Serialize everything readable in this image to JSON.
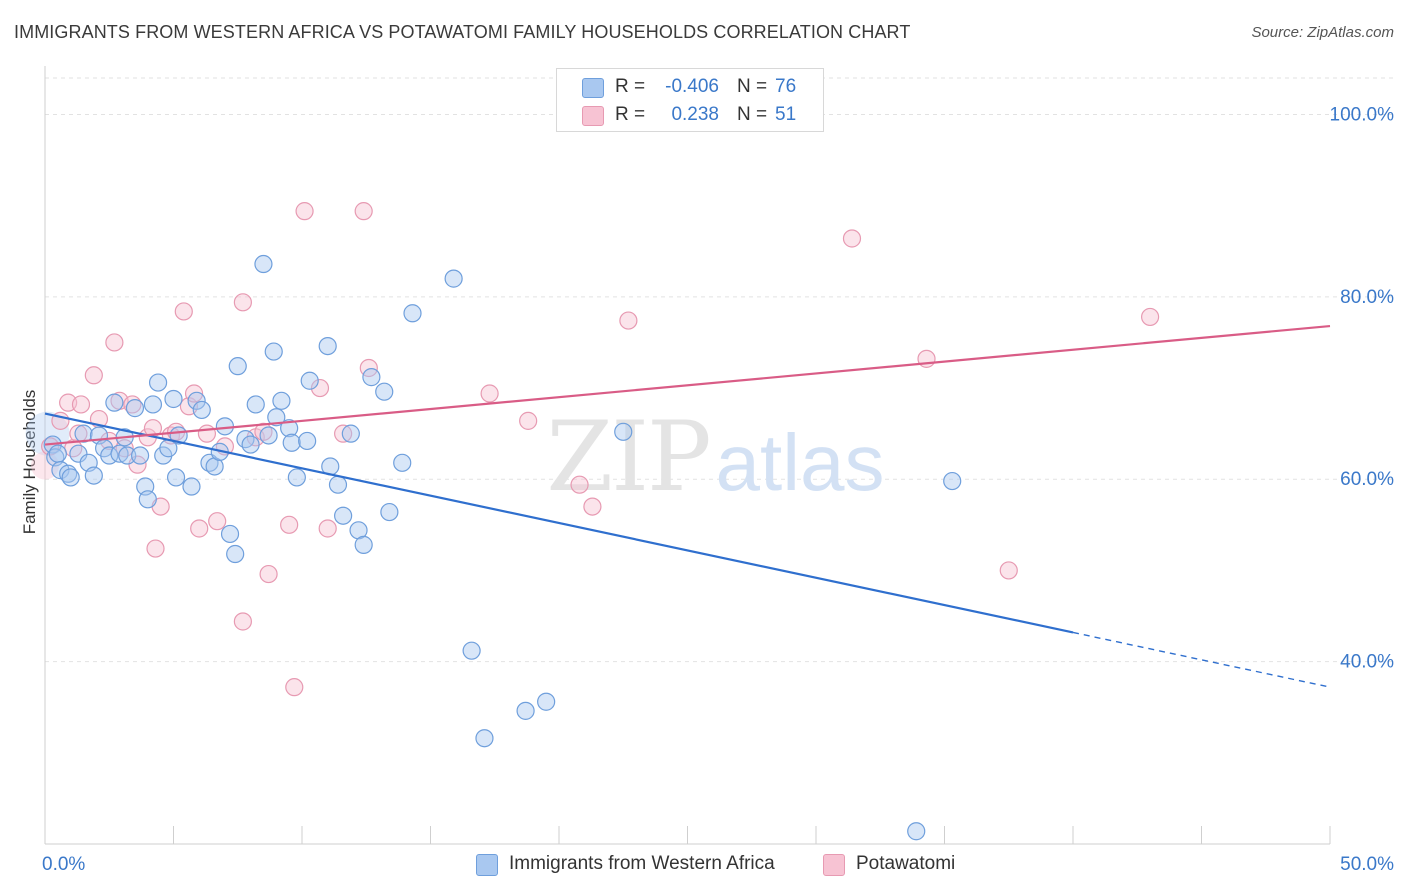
{
  "title": "IMMIGRANTS FROM WESTERN AFRICA VS POTAWATOMI FAMILY HOUSEHOLDS CORRELATION CHART",
  "source": "Source: ZipAtlas.com",
  "watermark": {
    "zip": "ZIP",
    "atlas": "atlas"
  },
  "legend": {
    "rows": [
      {
        "r_label": "R =",
        "r_value": "-0.406",
        "n_label": "N =",
        "n_value": "76",
        "color": "#a9c8f0",
        "border": "#6f9fdc"
      },
      {
        "r_label": "R =",
        "r_value": "0.238",
        "n_label": "N =",
        "n_value": "51",
        "color": "#f7c3d3",
        "border": "#e79ab2"
      }
    ]
  },
  "bottom_legend": [
    {
      "label": "Immigrants from Western Africa",
      "color": "#a9c8f0",
      "border": "#6f9fdc"
    },
    {
      "label": "Potawatomi",
      "color": "#f7c3d3",
      "border": "#e79ab2"
    }
  ],
  "chart_data": {
    "type": "scatter",
    "xlabel": "",
    "ylabel": "Family Households",
    "xlim": [
      0,
      50
    ],
    "ylim": [
      20,
      104
    ],
    "x_tick_labels": [
      "0.0%",
      "50.0%"
    ],
    "y_tick_labels": [
      "100.0%",
      "80.0%",
      "60.0%",
      "40.0%"
    ],
    "y_ticks": [
      100,
      80,
      60,
      40
    ],
    "grid": true,
    "series": [
      {
        "name": "Immigrants from Western Africa",
        "color": "#6f9fdc",
        "fill": "#a9c8f0",
        "trend_color": "#2f6fce",
        "trend": {
          "x0": 0,
          "y0": 67.2,
          "x1": 40,
          "y1": 43.2,
          "x_dash_end": 50,
          "y_dash_end": 37.2
        },
        "points": [
          [
            0.3,
            63.8
          ],
          [
            0.4,
            62.4
          ],
          [
            0.5,
            62.8
          ],
          [
            0.6,
            61.0
          ],
          [
            0.9,
            60.6
          ],
          [
            1.0,
            60.2
          ],
          [
            1.3,
            62.8
          ],
          [
            1.5,
            65.0
          ],
          [
            1.7,
            61.8
          ],
          [
            1.9,
            60.4
          ],
          [
            2.1,
            64.8
          ],
          [
            2.3,
            63.4
          ],
          [
            2.5,
            62.6
          ],
          [
            2.7,
            68.4
          ],
          [
            2.9,
            62.8
          ],
          [
            3.1,
            64.6
          ],
          [
            3.2,
            62.6
          ],
          [
            3.5,
            67.8
          ],
          [
            3.7,
            62.6
          ],
          [
            3.9,
            59.2
          ],
          [
            4.0,
            57.8
          ],
          [
            4.2,
            68.2
          ],
          [
            4.4,
            70.6
          ],
          [
            4.6,
            62.6
          ],
          [
            4.8,
            63.4
          ],
          [
            5.0,
            68.8
          ],
          [
            5.1,
            60.2
          ],
          [
            5.2,
            64.8
          ],
          [
            5.7,
            59.2
          ],
          [
            5.9,
            68.6
          ],
          [
            6.1,
            67.6
          ],
          [
            6.4,
            61.8
          ],
          [
            6.6,
            61.4
          ],
          [
            6.8,
            63.0
          ],
          [
            7.0,
            65.8
          ],
          [
            7.2,
            54.0
          ],
          [
            7.4,
            51.8
          ],
          [
            7.5,
            72.4
          ],
          [
            7.8,
            64.4
          ],
          [
            8.0,
            63.8
          ],
          [
            8.2,
            68.2
          ],
          [
            8.5,
            83.6
          ],
          [
            8.7,
            64.8
          ],
          [
            8.9,
            74.0
          ],
          [
            9.0,
            66.8
          ],
          [
            9.2,
            68.6
          ],
          [
            9.5,
            65.6
          ],
          [
            9.6,
            64.0
          ],
          [
            9.8,
            60.2
          ],
          [
            10.2,
            64.2
          ],
          [
            10.3,
            70.8
          ],
          [
            11.0,
            74.6
          ],
          [
            11.1,
            61.4
          ],
          [
            11.4,
            59.4
          ],
          [
            11.6,
            56.0
          ],
          [
            11.9,
            65.0
          ],
          [
            12.2,
            54.4
          ],
          [
            12.4,
            52.8
          ],
          [
            12.7,
            71.2
          ],
          [
            13.2,
            69.6
          ],
          [
            13.4,
            56.4
          ],
          [
            13.9,
            61.8
          ],
          [
            14.3,
            78.2
          ],
          [
            15.9,
            82.0
          ],
          [
            16.6,
            41.2
          ],
          [
            17.1,
            31.6
          ],
          [
            18.7,
            34.6
          ],
          [
            19.5,
            35.6
          ],
          [
            22.5,
            65.2
          ],
          [
            35.3,
            59.8
          ],
          [
            33.9,
            21.4
          ]
        ]
      },
      {
        "name": "Potawatomi",
        "color": "#e79ab2",
        "fill": "#f7c3d3",
        "trend_color": "#d95c86",
        "trend": {
          "x0": 0,
          "y0": 63.8,
          "x1": 50,
          "y1": 76.8
        },
        "points": [
          [
            0.2,
            63.6
          ],
          [
            0.6,
            66.4
          ],
          [
            0.9,
            68.4
          ],
          [
            1.1,
            63.4
          ],
          [
            1.3,
            65.0
          ],
          [
            1.4,
            68.2
          ],
          [
            1.9,
            71.4
          ],
          [
            2.1,
            66.6
          ],
          [
            2.5,
            64.2
          ],
          [
            2.7,
            75.0
          ],
          [
            2.9,
            68.6
          ],
          [
            3.1,
            63.4
          ],
          [
            3.4,
            68.2
          ],
          [
            3.6,
            61.6
          ],
          [
            4.0,
            64.6
          ],
          [
            4.2,
            65.6
          ],
          [
            4.3,
            52.4
          ],
          [
            4.5,
            57.0
          ],
          [
            4.9,
            64.8
          ],
          [
            5.1,
            65.2
          ],
          [
            5.4,
            78.4
          ],
          [
            5.6,
            68.0
          ],
          [
            5.8,
            69.4
          ],
          [
            6.0,
            54.6
          ],
          [
            6.3,
            65.0
          ],
          [
            6.7,
            55.4
          ],
          [
            7.0,
            63.6
          ],
          [
            7.7,
            44.4
          ],
          [
            7.7,
            79.4
          ],
          [
            8.2,
            64.6
          ],
          [
            8.5,
            65.2
          ],
          [
            8.7,
            49.6
          ],
          [
            9.5,
            55.0
          ],
          [
            9.7,
            37.2
          ],
          [
            10.1,
            89.4
          ],
          [
            10.7,
            70.0
          ],
          [
            11.0,
            54.6
          ],
          [
            11.6,
            65.0
          ],
          [
            12.4,
            89.4
          ],
          [
            12.6,
            72.2
          ],
          [
            17.3,
            69.4
          ],
          [
            18.8,
            66.4
          ],
          [
            20.8,
            59.4
          ],
          [
            21.3,
            57.0
          ],
          [
            22.7,
            77.4
          ],
          [
            31.4,
            86.4
          ],
          [
            34.3,
            73.2
          ],
          [
            37.5,
            50.0
          ],
          [
            43.0,
            77.8
          ]
        ]
      }
    ]
  }
}
